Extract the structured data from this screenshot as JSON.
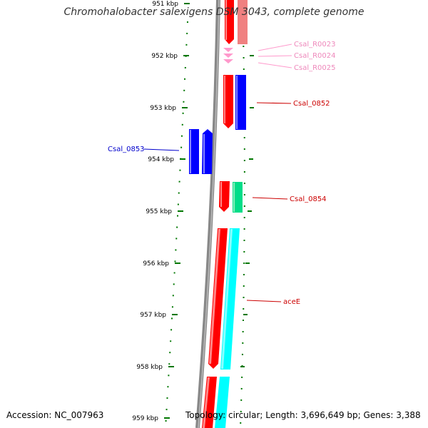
{
  "title": "Chromohalobacter salexigens DSM 3043, complete genome",
  "footer": {
    "accession": "Accession: NC_007963",
    "topology": "Topology: circular; Length: 3,696,649 bp; Genes: 3,388"
  },
  "ruler": {
    "ticks": [
      "951 kbp",
      "952 kbp",
      "953 kbp",
      "954 kbp",
      "955 kbp",
      "956 kbp",
      "957 kbp",
      "958 kbp",
      "959 kbp"
    ]
  },
  "gene_labels": {
    "csal_r0023": "Csal_R0023",
    "csal_r0024": "Csal_R0024",
    "csal_r0025": "Csal_R0025",
    "csal_0852": "Csal_0852",
    "csal_0853": "Csal_0853",
    "csal_0854": "Csal_0854",
    "acee": "aceE"
  },
  "colors": {
    "backbone": "#888888",
    "forward_gene": "#ff0000",
    "reverse_gene": "#0000ff",
    "rna_gene": "#ff99cc",
    "green_gene": "#00dd88",
    "cyan_gene": "#00ffff",
    "tick": "#007700",
    "rna_label": "#ee88bb",
    "gene_label": "#cc0000",
    "reverse_label": "#0000cc"
  }
}
